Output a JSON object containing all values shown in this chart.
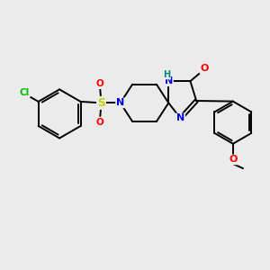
{
  "bg_color": "#ebebeb",
  "bond_color": "#000000",
  "atom_colors": {
    "Cl": "#00bb00",
    "S": "#cccc00",
    "N": "#0000ee",
    "O": "#ff0000",
    "H": "#008888",
    "C": "#000000"
  },
  "figsize": [
    3.0,
    3.0
  ],
  "dpi": 100
}
